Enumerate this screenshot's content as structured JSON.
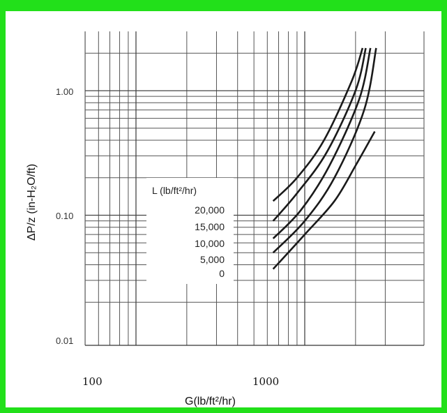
{
  "chart_data": {
    "type": "line",
    "title": "",
    "xlabel": "G(lb/ft²/hr)",
    "ylabel": "ΔP/z (in-H₂O/ft)",
    "xscale": "log",
    "yscale": "log",
    "xlim": [
      100,
      3500
    ],
    "ylim": [
      0.01,
      2.5
    ],
    "x_tick_labels": [
      "100",
      "1000"
    ],
    "y_tick_labels": [
      "1.00",
      "0.10",
      "0.01"
    ],
    "grid": true,
    "legend_title": "L (lb/ft²/hr)",
    "series": [
      {
        "name": "20,000",
        "x": [
          650,
          900,
          1300,
          1900,
          2200
        ],
        "y": [
          0.13,
          0.2,
          0.4,
          1.2,
          2.2
        ]
      },
      {
        "name": "15,000",
        "x": [
          650,
          900,
          1350,
          2000,
          2300
        ],
        "y": [
          0.09,
          0.15,
          0.32,
          1.0,
          2.2
        ]
      },
      {
        "name": "10,000",
        "x": [
          650,
          950,
          1400,
          2100,
          2450
        ],
        "y": [
          0.065,
          0.11,
          0.25,
          0.85,
          2.2
        ]
      },
      {
        "name": "5,000",
        "x": [
          650,
          1000,
          1500,
          2250,
          2650
        ],
        "y": [
          0.05,
          0.09,
          0.2,
          0.7,
          2.2
        ]
      },
      {
        "name": "0",
        "x": [
          650,
          1000,
          1500,
          2000,
          2600
        ],
        "y": [
          0.037,
          0.07,
          0.13,
          0.25,
          0.47
        ]
      }
    ]
  }
}
